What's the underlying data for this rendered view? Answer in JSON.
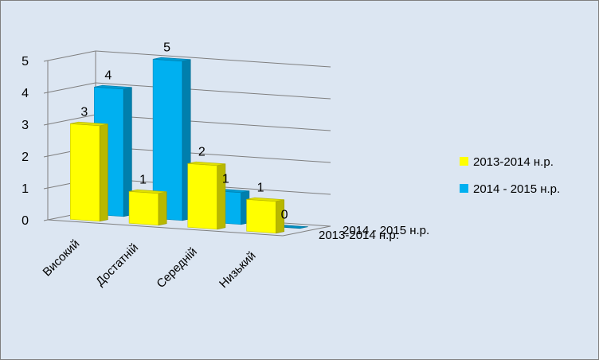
{
  "chart_data": {
    "type": "bar",
    "title": "",
    "xlabel": "",
    "ylabel": "",
    "ylim": [
      0,
      5
    ],
    "yticks": [
      0,
      1,
      2,
      3,
      4,
      5
    ],
    "categories": [
      "Високий",
      "Достатній",
      "Середній",
      "Низький"
    ],
    "series": [
      {
        "name": "2013-2014 н.р.",
        "values": [
          3,
          1,
          2,
          1
        ],
        "color": "#ffff00"
      },
      {
        "name": "2014 - 2015 н.р.",
        "values": [
          4,
          5,
          1,
          0
        ],
        "color": "#00b0f0"
      }
    ],
    "depth_axis_labels": [
      "2014 - 2015 н.р.",
      "2013-2014 н.р."
    ],
    "legend_position": "right",
    "grid": true,
    "style": "3d-column",
    "background": "#dce6f2",
    "border_color": "#7f7f7f"
  }
}
